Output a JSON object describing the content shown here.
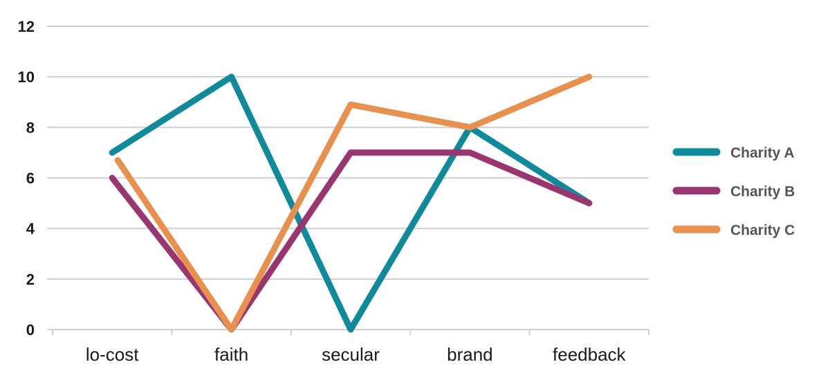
{
  "chart_data": {
    "type": "line",
    "categories": [
      "lo-cost",
      "faith",
      "secular",
      "brand",
      "feedback"
    ],
    "series": [
      {
        "name": "Charity A",
        "color": "#0E8A9A",
        "values": [
          7,
          10,
          0,
          8,
          5
        ]
      },
      {
        "name": "Charity B",
        "color": "#993670",
        "values": [
          6,
          0,
          7,
          7,
          5
        ]
      },
      {
        "name": "Charity C",
        "color": "#E8904E",
        "values": [
          6.7,
          0,
          8.9,
          8,
          10
        ]
      }
    ],
    "ylim": [
      0,
      12
    ],
    "yticks": [
      "0",
      "2",
      "4",
      "6",
      "8",
      "10",
      "12"
    ],
    "grid": true,
    "legend": "right"
  }
}
